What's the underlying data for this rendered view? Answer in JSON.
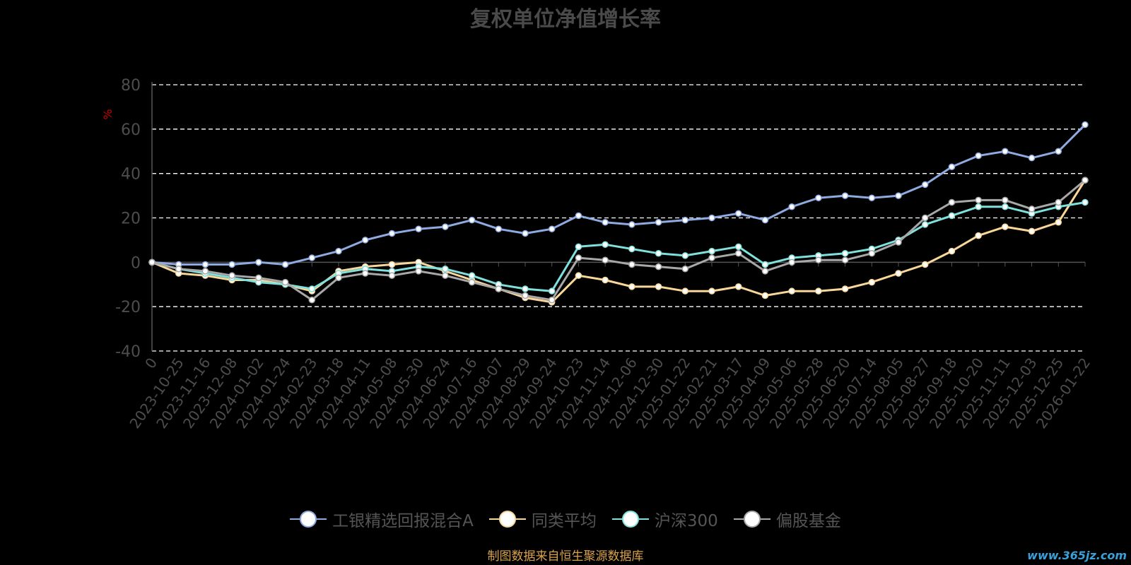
{
  "title": "复权单位净值增长率",
  "source": "制图数据来自恒生聚源数据库",
  "watermark": "www.365jz.com",
  "chart_data": {
    "type": "line",
    "ylabel": "%",
    "ylim": [
      -40,
      80
    ],
    "yticks": [
      -40,
      -20,
      0,
      20,
      40,
      60,
      80
    ],
    "grid": true,
    "legend_position": "bottom",
    "x_labels": [
      "0",
      "2023-10-25",
      "2023-11-16",
      "2023-12-08",
      "2024-01-02",
      "2024-01-24",
      "2024-02-23",
      "2024-03-18",
      "2024-04-11",
      "2024-05-08",
      "2024-05-30",
      "2024-06-24",
      "2024-07-16",
      "2024-08-07",
      "2024-08-29",
      "2024-09-24",
      "2024-10-23",
      "2024-11-14",
      "2024-12-06",
      "2024-12-30",
      "2025-01-22",
      "2025-02-21",
      "2025-03-17",
      "2025-04-09",
      "2025-05-06",
      "2025-05-28",
      "2025-06-20",
      "2025-07-14",
      "2025-08-05",
      "2025-08-27",
      "2025-09-18",
      "2025-10-20",
      "2025-11-11",
      "2025-12-03",
      "2025-12-25",
      "2026-01-22"
    ],
    "series": [
      {
        "name": "工银精选回报混合A",
        "color": "#8eaae0",
        "values": [
          0,
          -1,
          -1,
          -1,
          0,
          -1,
          2,
          5,
          10,
          13,
          15,
          16,
          19,
          15,
          13,
          15,
          21,
          18,
          17,
          18,
          19,
          20,
          22,
          19,
          25,
          29,
          30,
          29,
          30,
          35,
          43,
          48,
          50,
          47,
          50,
          62
        ]
      },
      {
        "name": "同类平均",
        "color": "#f9d79a",
        "values": [
          0,
          -5,
          -6,
          -8,
          -8,
          -10,
          -13,
          -4,
          -2,
          -1,
          0,
          -4,
          -8,
          -12,
          -16,
          -18,
          -6,
          -8,
          -11,
          -11,
          -13,
          -13,
          -11,
          -15,
          -13,
          -13,
          -12,
          -9,
          -5,
          -1,
          5,
          12,
          16,
          14,
          18,
          37
        ]
      },
      {
        "name": "沪深300",
        "color": "#7fe0dc",
        "values": [
          0,
          -3,
          -5,
          -7,
          -9,
          -10,
          -12,
          -5,
          -3,
          -4,
          -2,
          -3,
          -6,
          -10,
          -12,
          -13,
          7,
          8,
          6,
          4,
          3,
          5,
          7,
          -1,
          2,
          3,
          4,
          6,
          10,
          17,
          21,
          25,
          25,
          22,
          25,
          27
        ]
      },
      {
        "name": "偏股基金",
        "color": "#a8a8a8",
        "values": [
          0,
          -3,
          -4,
          -6,
          -7,
          -9,
          -17,
          -7,
          -5,
          -6,
          -4,
          -6,
          -9,
          -12,
          -15,
          -17,
          2,
          1,
          -1,
          -2,
          -3,
          2,
          4,
          -4,
          0,
          1,
          1,
          4,
          9,
          20,
          27,
          28,
          28,
          24,
          27,
          37
        ]
      }
    ]
  }
}
